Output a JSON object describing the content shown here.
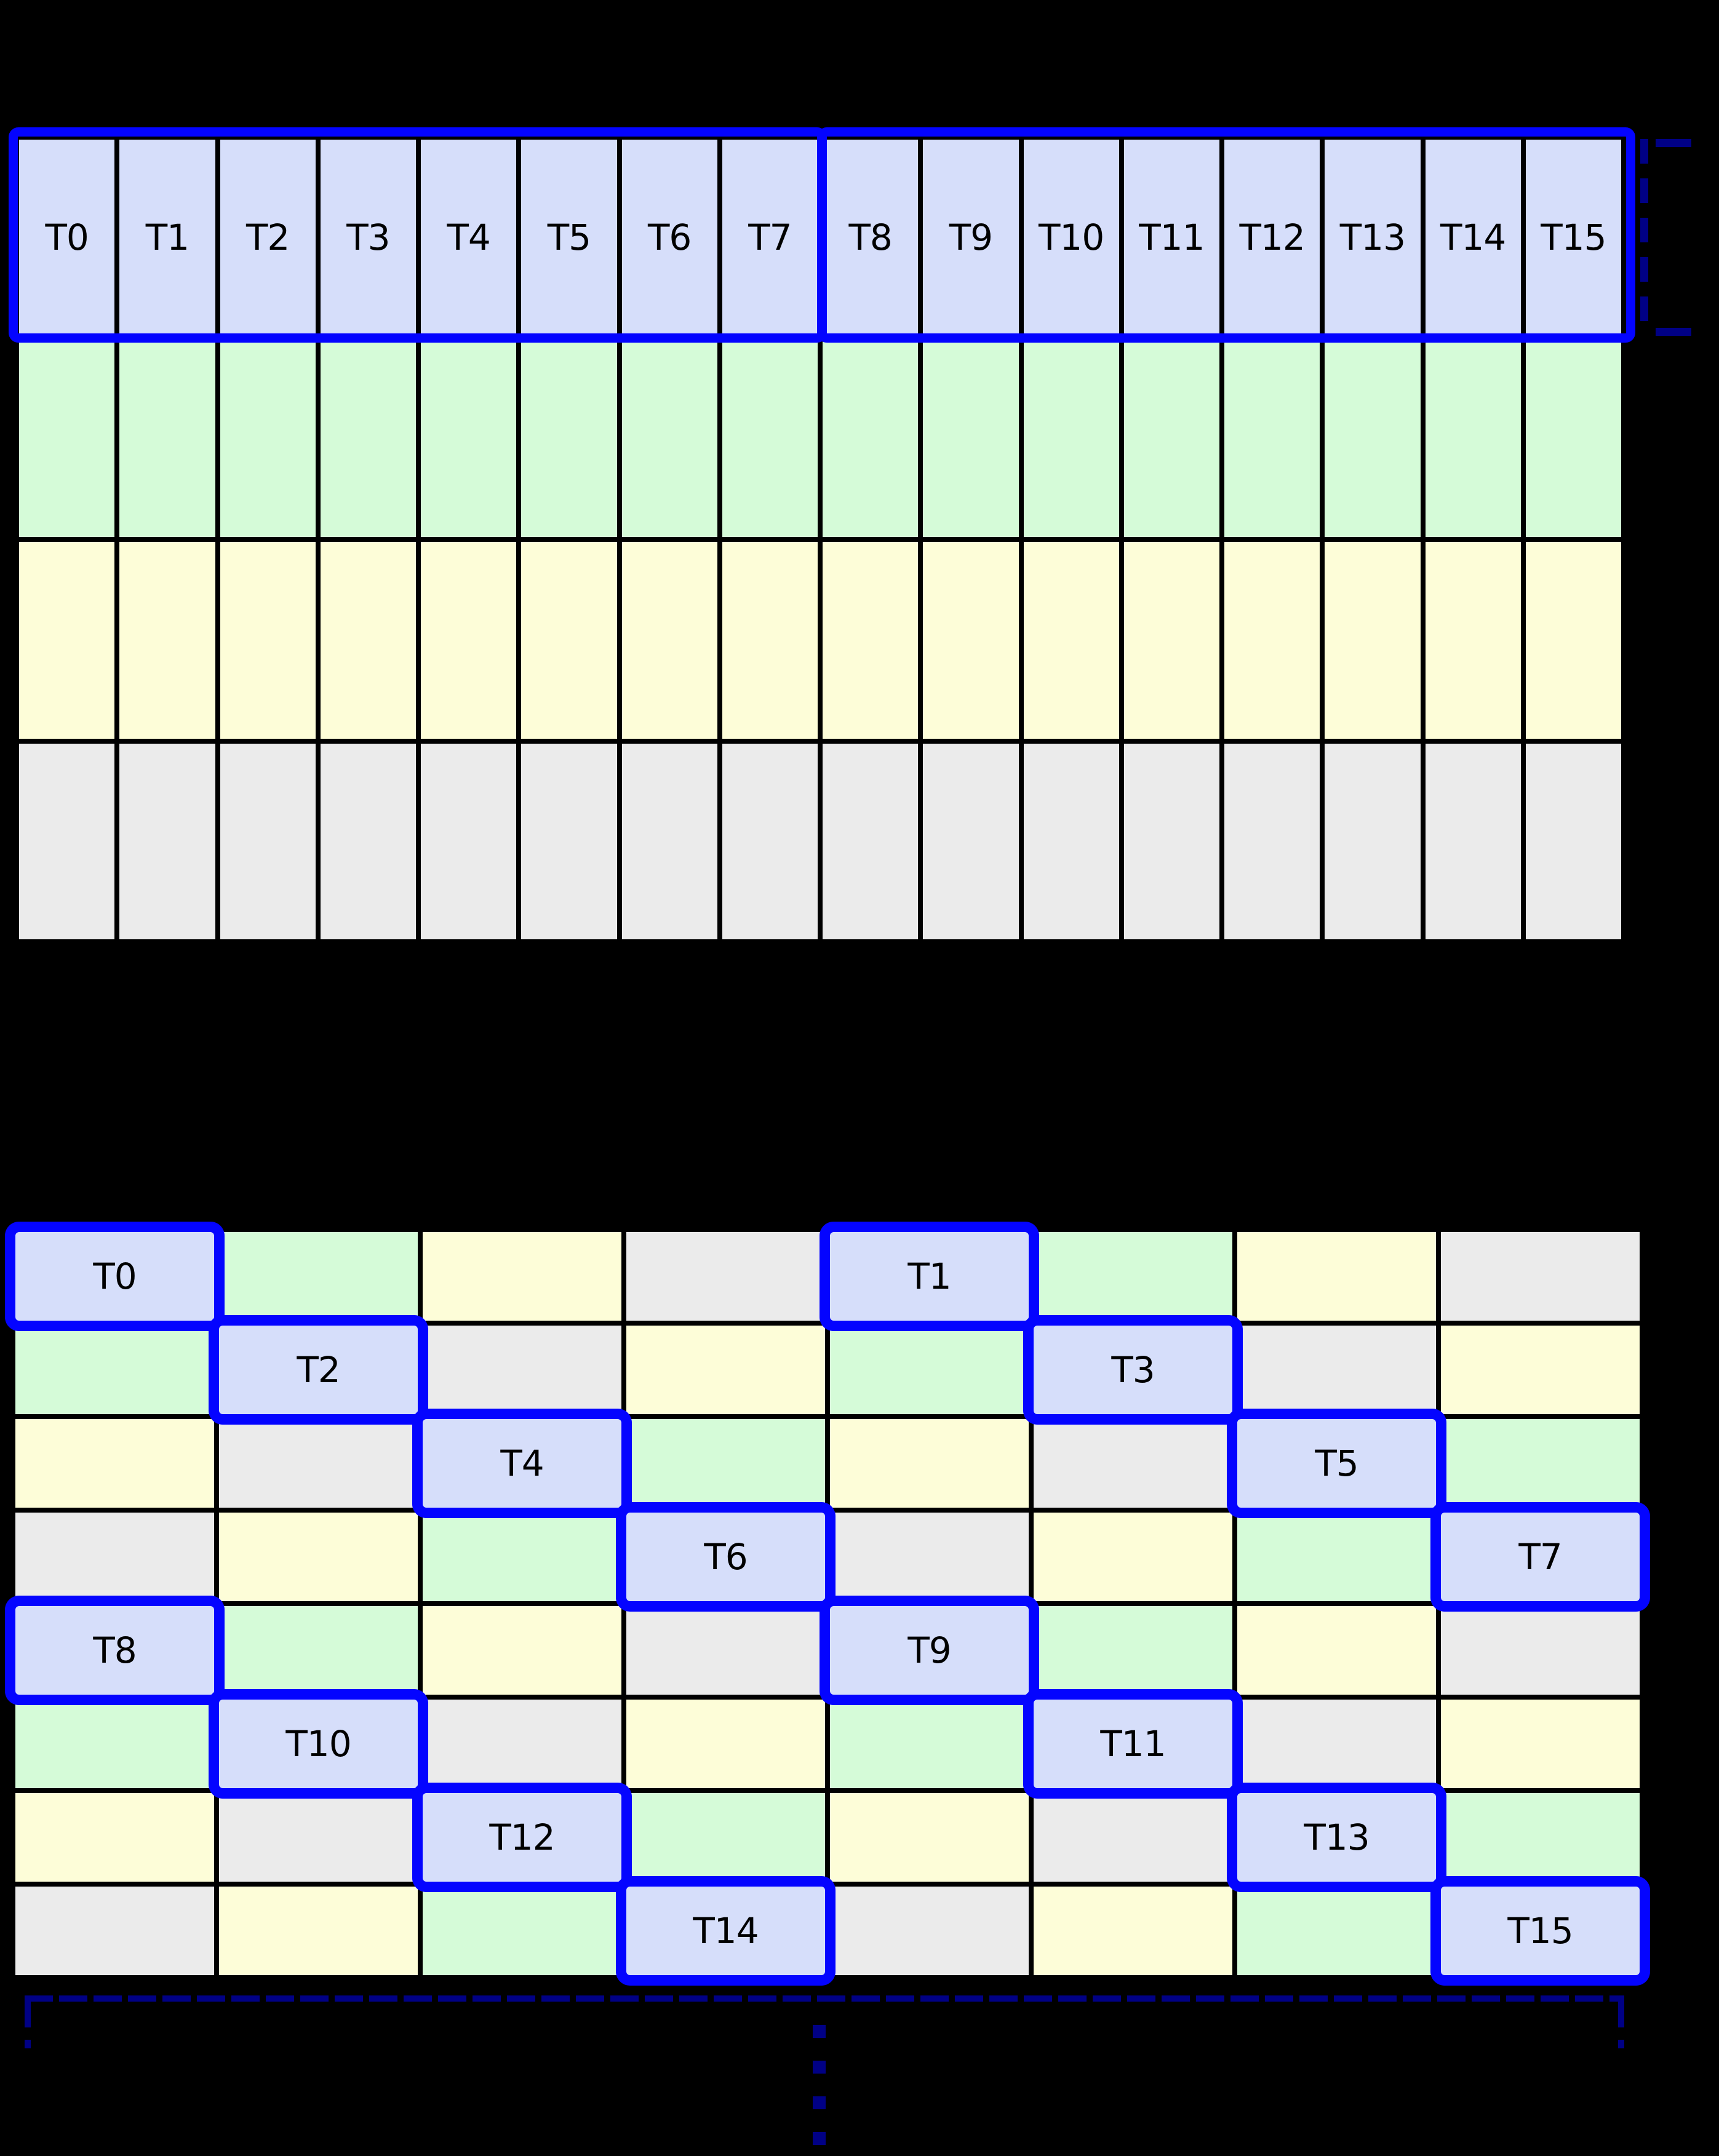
{
  "diagram": {
    "colors": {
      "background": "#000000",
      "thread_cell": "#d6defa",
      "bank_green": "#d5fbd8",
      "bank_yellow": "#fdfdd8",
      "bank_gray": "#ebebeb",
      "highlight": "#0404ff",
      "bracket": "#000085",
      "grid_line": "#000000",
      "label": "#000000"
    },
    "icons": {
      "right_bracket_icon": "dashed-span-bracket",
      "bottom_bracket_icon": "dashed-span-bracket",
      "continuation_icon": "vertical-ellipsis"
    },
    "top_grid": {
      "thread_labels": [
        "T0",
        "T1",
        "T2",
        "T3",
        "T4",
        "T5",
        "T6",
        "T7",
        "T8",
        "T9",
        "T10",
        "T11",
        "T12",
        "T13",
        "T14",
        "T15"
      ],
      "group_size": 8,
      "memory_rows": [
        "bank_green",
        "bank_yellow",
        "bank_gray"
      ]
    },
    "bottom_grid": {
      "columns": 8,
      "rows": [
        [
          {
            "color": "thread_cell",
            "label": "T0"
          },
          {
            "color": "bank_green",
            "label": ""
          },
          {
            "color": "bank_yellow",
            "label": ""
          },
          {
            "color": "bank_gray",
            "label": ""
          },
          {
            "color": "thread_cell",
            "label": "T1"
          },
          {
            "color": "bank_green",
            "label": ""
          },
          {
            "color": "bank_yellow",
            "label": ""
          },
          {
            "color": "bank_gray",
            "label": ""
          }
        ],
        [
          {
            "color": "bank_green",
            "label": ""
          },
          {
            "color": "thread_cell",
            "label": "T2"
          },
          {
            "color": "bank_gray",
            "label": ""
          },
          {
            "color": "bank_yellow",
            "label": ""
          },
          {
            "color": "bank_green",
            "label": ""
          },
          {
            "color": "thread_cell",
            "label": "T3"
          },
          {
            "color": "bank_gray",
            "label": ""
          },
          {
            "color": "bank_yellow",
            "label": ""
          }
        ],
        [
          {
            "color": "bank_yellow",
            "label": ""
          },
          {
            "color": "bank_gray",
            "label": ""
          },
          {
            "color": "thread_cell",
            "label": "T4"
          },
          {
            "color": "bank_green",
            "label": ""
          },
          {
            "color": "bank_yellow",
            "label": ""
          },
          {
            "color": "bank_gray",
            "label": ""
          },
          {
            "color": "thread_cell",
            "label": "T5"
          },
          {
            "color": "bank_green",
            "label": ""
          }
        ],
        [
          {
            "color": "bank_gray",
            "label": ""
          },
          {
            "color": "bank_yellow",
            "label": ""
          },
          {
            "color": "bank_green",
            "label": ""
          },
          {
            "color": "thread_cell",
            "label": "T6"
          },
          {
            "color": "bank_gray",
            "label": ""
          },
          {
            "color": "bank_yellow",
            "label": ""
          },
          {
            "color": "bank_green",
            "label": ""
          },
          {
            "color": "thread_cell",
            "label": "T7"
          }
        ],
        [
          {
            "color": "thread_cell",
            "label": "T8"
          },
          {
            "color": "bank_green",
            "label": ""
          },
          {
            "color": "bank_yellow",
            "label": ""
          },
          {
            "color": "bank_gray",
            "label": ""
          },
          {
            "color": "thread_cell",
            "label": "T9"
          },
          {
            "color": "bank_green",
            "label": ""
          },
          {
            "color": "bank_yellow",
            "label": ""
          },
          {
            "color": "bank_gray",
            "label": ""
          }
        ],
        [
          {
            "color": "bank_green",
            "label": ""
          },
          {
            "color": "thread_cell",
            "label": "T10"
          },
          {
            "color": "bank_gray",
            "label": ""
          },
          {
            "color": "bank_yellow",
            "label": ""
          },
          {
            "color": "bank_green",
            "label": ""
          },
          {
            "color": "thread_cell",
            "label": "T11"
          },
          {
            "color": "bank_gray",
            "label": ""
          },
          {
            "color": "bank_yellow",
            "label": ""
          }
        ],
        [
          {
            "color": "bank_yellow",
            "label": ""
          },
          {
            "color": "bank_gray",
            "label": ""
          },
          {
            "color": "thread_cell",
            "label": "T12"
          },
          {
            "color": "bank_green",
            "label": ""
          },
          {
            "color": "bank_yellow",
            "label": ""
          },
          {
            "color": "bank_gray",
            "label": ""
          },
          {
            "color": "thread_cell",
            "label": "T13"
          },
          {
            "color": "bank_green",
            "label": ""
          }
        ],
        [
          {
            "color": "bank_gray",
            "label": ""
          },
          {
            "color": "bank_yellow",
            "label": ""
          },
          {
            "color": "bank_green",
            "label": ""
          },
          {
            "color": "thread_cell",
            "label": "T14"
          },
          {
            "color": "bank_gray",
            "label": ""
          },
          {
            "color": "bank_yellow",
            "label": ""
          },
          {
            "color": "bank_green",
            "label": ""
          },
          {
            "color": "thread_cell",
            "label": "T15"
          }
        ]
      ]
    }
  }
}
